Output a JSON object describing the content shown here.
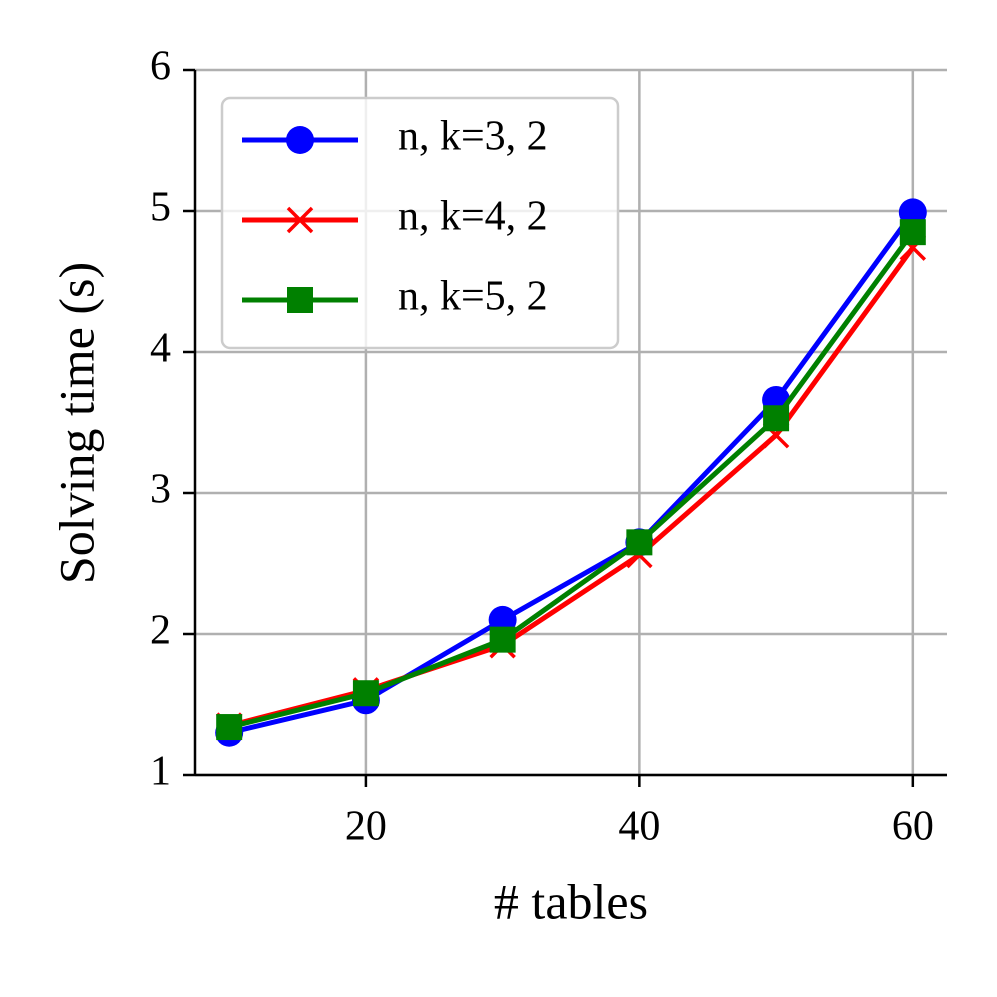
{
  "chart_data": {
    "type": "line",
    "x_label": "# tables",
    "y_label": "Solving time (s)",
    "x": [
      10,
      20,
      30,
      40,
      50,
      60
    ],
    "series": [
      {
        "name": "n, k=3, 2",
        "color": "#0000ff",
        "marker": "circle",
        "values": [
          1.3,
          1.53,
          2.1,
          2.65,
          3.66,
          4.99
        ]
      },
      {
        "name": "n, k=4, 2",
        "color": "#ff0000",
        "marker": "x",
        "values": [
          1.35,
          1.6,
          1.92,
          2.56,
          3.41,
          4.74
        ]
      },
      {
        "name": "n, k=5, 2",
        "color": "#008000",
        "marker": "square",
        "values": [
          1.34,
          1.58,
          1.96,
          2.65,
          3.53,
          4.85
        ]
      }
    ],
    "xlim": [
      7.5,
      62.5
    ],
    "xticks": [
      20,
      40,
      60
    ],
    "ylim": [
      1,
      6
    ],
    "yticks": [
      1,
      2,
      3,
      4,
      5,
      6
    ],
    "grid": true,
    "legend": "upper-left"
  }
}
